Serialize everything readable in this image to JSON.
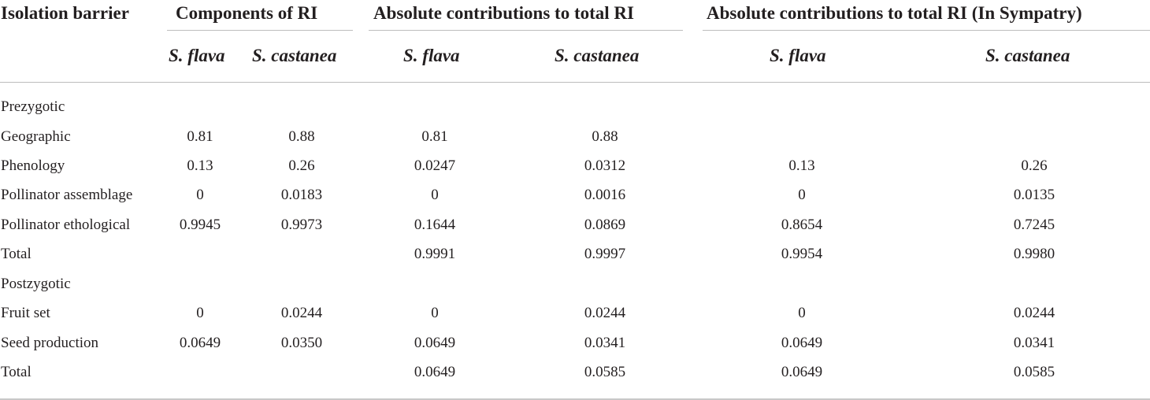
{
  "table": {
    "headers": {
      "barrier": "Isolation barrier",
      "components": "Components of RI",
      "absolute": "Absolute contributions to total RI",
      "sympatry": "Absolute contributions to total RI (In Sympatry)"
    },
    "subheaders": [
      "S. flava",
      "S. castanea",
      "S. flava",
      "S. castanea",
      "S. flava",
      "S. castanea"
    ],
    "rows": [
      {
        "label": "Prezygotic",
        "values": [
          "",
          "",
          "",
          "",
          "",
          ""
        ]
      },
      {
        "label": "Geographic",
        "values": [
          "0.81",
          "0.88",
          "0.81",
          "0.88",
          "",
          ""
        ]
      },
      {
        "label": "Phenology",
        "values": [
          "0.13",
          "0.26",
          "0.0247",
          "0.0312",
          "0.13",
          "0.26"
        ]
      },
      {
        "label": "Pollinator assemblage",
        "values": [
          "0",
          "0.0183",
          "0",
          "0.0016",
          "0",
          "0.0135"
        ]
      },
      {
        "label": "Pollinator ethological",
        "values": [
          "0.9945",
          "0.9973",
          "0.1644",
          "0.0869",
          "0.8654",
          "0.7245"
        ]
      },
      {
        "label": "Total",
        "values": [
          "",
          "",
          "0.9991",
          "0.9997",
          "0.9954",
          "0.9980"
        ]
      },
      {
        "label": "Postzygotic",
        "values": [
          "",
          "",
          "",
          "",
          "",
          ""
        ]
      },
      {
        "label": "Fruit set",
        "values": [
          "0",
          "0.0244",
          "0",
          "0.0244",
          "0",
          "0.0244"
        ]
      },
      {
        "label": "Seed production",
        "values": [
          "0.0649",
          "0.0350",
          "0.0649",
          "0.0341",
          "0.0649",
          "0.0341"
        ]
      },
      {
        "label": "Total",
        "values": [
          "",
          "",
          "0.0649",
          "0.0585",
          "0.0649",
          "0.0585"
        ]
      }
    ]
  }
}
